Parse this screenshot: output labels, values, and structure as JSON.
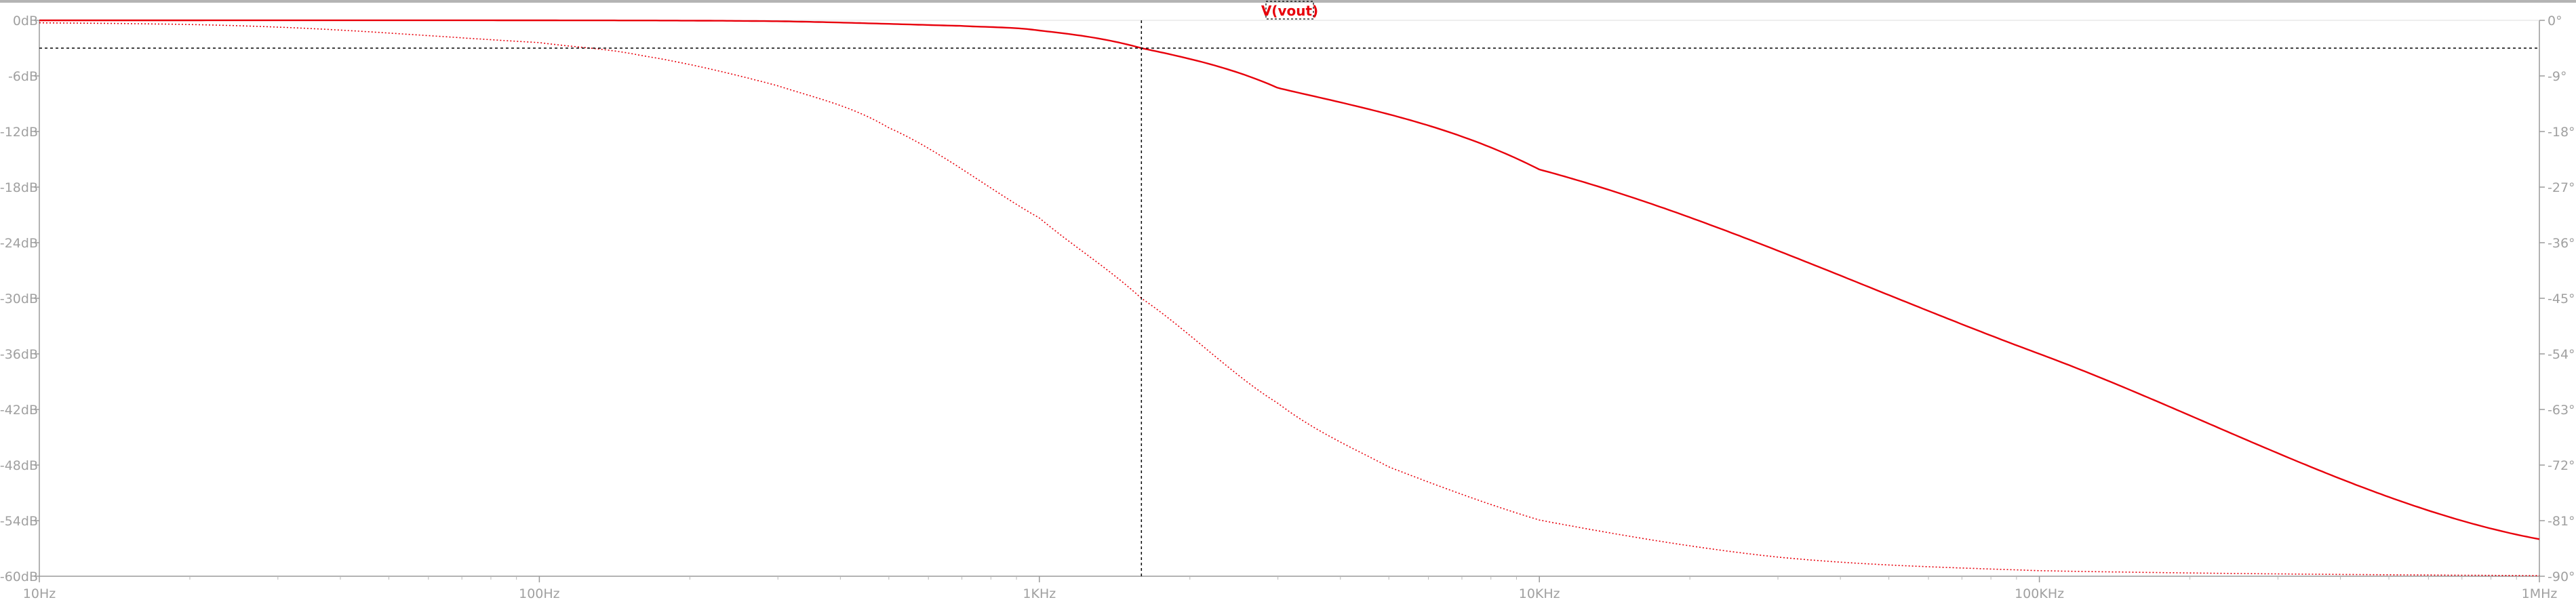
{
  "trace_label": "V(vout)",
  "colors": {
    "trace": "#e8000b",
    "axis": "#9a9a9a",
    "tick_text": "#a0a0a0",
    "cursor": "#000000",
    "top_bar": "#b4b4b4"
  },
  "chart_data": {
    "type": "line",
    "title": "",
    "xlabel": "",
    "ylabel": "",
    "x_scale": "log",
    "xlim": [
      10,
      1000000
    ],
    "ylim_left": [
      -60,
      0
    ],
    "ylim_right": [
      -90,
      0
    ],
    "grid": false,
    "x_ticks": [
      {
        "value": 10,
        "label": "10Hz"
      },
      {
        "value": 100,
        "label": "100Hz"
      },
      {
        "value": 1000,
        "label": "1KHz"
      },
      {
        "value": 10000,
        "label": "10KHz"
      },
      {
        "value": 100000,
        "label": "100KHz"
      },
      {
        "value": 1000000,
        "label": "1MHz"
      }
    ],
    "y_ticks_left": [
      {
        "value": 0,
        "label": "0dB"
      },
      {
        "value": -6,
        "label": "-6dB"
      },
      {
        "value": -12,
        "label": "-12dB"
      },
      {
        "value": -18,
        "label": "-18dB"
      },
      {
        "value": -24,
        "label": "-24dB"
      },
      {
        "value": -30,
        "label": "-30dB"
      },
      {
        "value": -36,
        "label": "-36dB"
      },
      {
        "value": -42,
        "label": "-42dB"
      },
      {
        "value": -48,
        "label": "-48dB"
      },
      {
        "value": -54,
        "label": "-54dB"
      },
      {
        "value": -60,
        "label": "-60dB"
      }
    ],
    "y_ticks_right": [
      {
        "value": 0,
        "label": "0°"
      },
      {
        "value": -9,
        "label": "-9°"
      },
      {
        "value": -18,
        "label": "-18°"
      },
      {
        "value": -27,
        "label": "-27°"
      },
      {
        "value": -36,
        "label": "-36°"
      },
      {
        "value": -45,
        "label": "-45°"
      },
      {
        "value": -54,
        "label": "-54°"
      },
      {
        "value": -63,
        "label": "-63°"
      },
      {
        "value": -72,
        "label": "-72°"
      },
      {
        "value": -81,
        "label": "-81°"
      },
      {
        "value": -90,
        "label": "-90°"
      }
    ],
    "series": [
      {
        "name": "V(vout)",
        "kind": "magnitude",
        "axis": "left",
        "unit": "dB",
        "x": [
          10,
          100,
          300,
          700,
          1000,
          1600,
          3000,
          10000,
          100000,
          1000000
        ],
        "y": [
          0,
          0,
          -0.1,
          -0.6,
          -1.1,
          -3.0,
          -7.3,
          -16.1,
          -36.0,
          -56.0
        ]
      },
      {
        "name": "V(vout)",
        "kind": "phase",
        "axis": "right",
        "unit": "°",
        "style": "dotted",
        "x": [
          10,
          30,
          100,
          160,
          300,
          500,
          1000,
          1600,
          3000,
          5000,
          10000,
          30000,
          100000,
          1000000
        ],
        "y": [
          -0.4,
          -1.1,
          -3.6,
          -5.7,
          -10.6,
          -17.4,
          -32.0,
          -45.0,
          -62.0,
          -72.3,
          -80.9,
          -86.9,
          -89.1,
          -89.9
        ]
      }
    ],
    "cursor": {
      "x": 1600,
      "y": -3
    }
  }
}
